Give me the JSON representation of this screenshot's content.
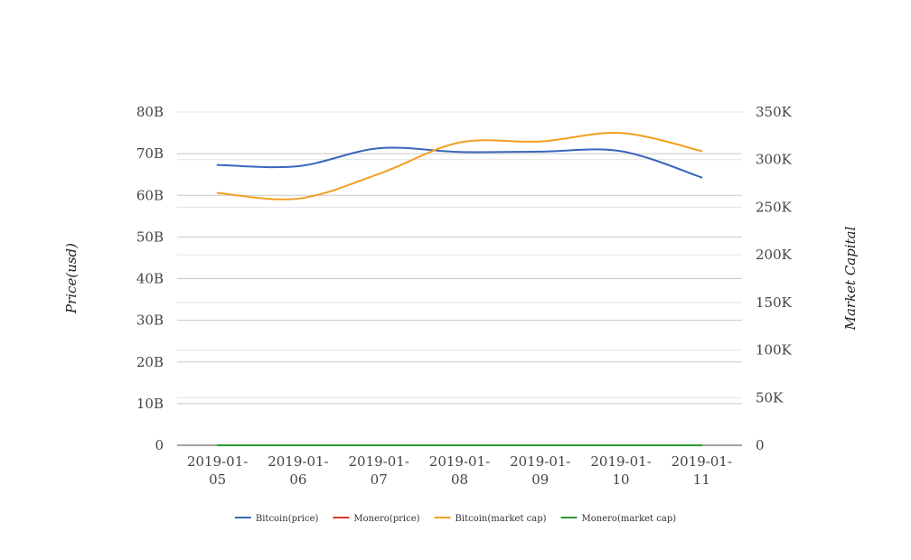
{
  "chart_data": {
    "type": "line",
    "categories": [
      [
        "2019-01-",
        "05"
      ],
      [
        "2019-01-",
        "06"
      ],
      [
        "2019-01-",
        "07"
      ],
      [
        "2019-01-",
        "08"
      ],
      [
        "2019-01-",
        "09"
      ],
      [
        "2019-01-",
        "10"
      ],
      [
        "2019-01-",
        "11"
      ]
    ],
    "y_left": {
      "title": "Price(usd)",
      "range": [
        0,
        80000000000
      ],
      "ticks": [
        0,
        10000000000,
        20000000000,
        30000000000,
        40000000000,
        50000000000,
        60000000000,
        70000000000,
        80000000000
      ],
      "tick_labels": [
        "0",
        "10B",
        "20B",
        "30B",
        "40B",
        "50B",
        "60B",
        "70B",
        "80B"
      ]
    },
    "y_right": {
      "title": "Market Capital",
      "range": [
        0,
        350000
      ],
      "ticks": [
        0,
        50000,
        100000,
        150000,
        200000,
        250000,
        300000,
        350000
      ],
      "tick_labels": [
        "0",
        "50K",
        "100K",
        "150K",
        "200K",
        "250K",
        "300K",
        "350K"
      ]
    },
    "grid": true,
    "legend_position": "bottom",
    "series": [
      {
        "name": "Bitcoin(price)",
        "axis": "left",
        "color": "#3a66bb",
        "values": [
          67300000000,
          67000000000,
          71300000000,
          70400000000,
          70500000000,
          70600000000,
          64300000000
        ]
      },
      {
        "name": "Monero(price)",
        "axis": "left",
        "color": "#d9391f",
        "values": [
          0,
          0,
          0,
          0,
          0,
          0,
          0
        ]
      },
      {
        "name": "Bitcoin(market cap)",
        "axis": "right",
        "color": "#f0a020",
        "values": [
          265000,
          259000,
          285000,
          318000,
          319000,
          328000,
          309000
        ]
      },
      {
        "name": "Monero(market cap)",
        "axis": "right",
        "color": "#2e9b2e",
        "values": [
          0,
          0,
          0,
          0,
          0,
          0,
          0
        ]
      }
    ]
  }
}
